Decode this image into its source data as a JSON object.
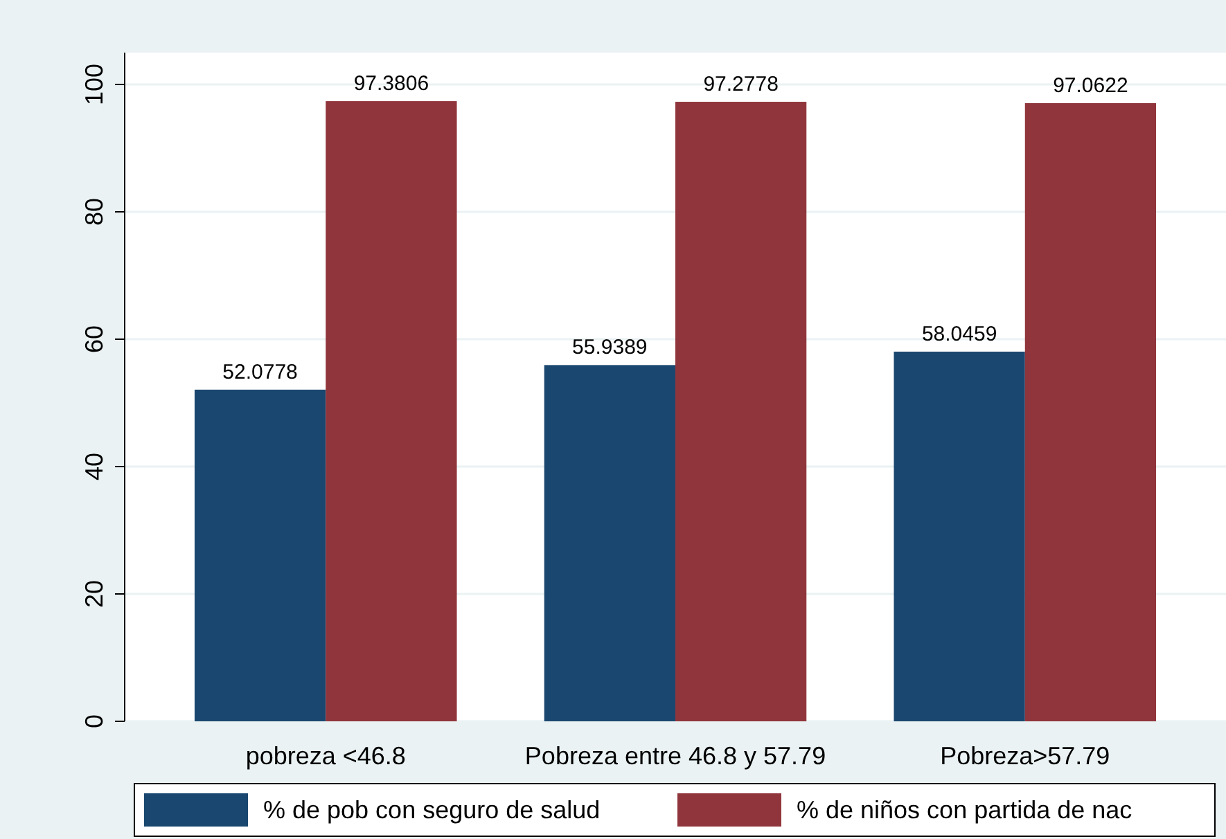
{
  "chart_data": {
    "type": "bar",
    "categories": [
      "pobreza <46.8",
      "Pobreza entre 46.8 y 57.79",
      "Pobreza>57.79"
    ],
    "series": [
      {
        "name": "% de pob con seguro de salud",
        "color": "#1a476f",
        "values": [
          52.0778,
          55.9389,
          58.0459
        ]
      },
      {
        "name": "% de niños con partida de nac",
        "color": "#90353b",
        "values": [
          97.3806,
          97.2778,
          97.0622
        ]
      }
    ],
    "ylim": [
      0,
      105
    ],
    "yticks": [
      0,
      20,
      40,
      60,
      80,
      100
    ],
    "grid": "y",
    "data_labels": true,
    "legend": "bottom"
  }
}
